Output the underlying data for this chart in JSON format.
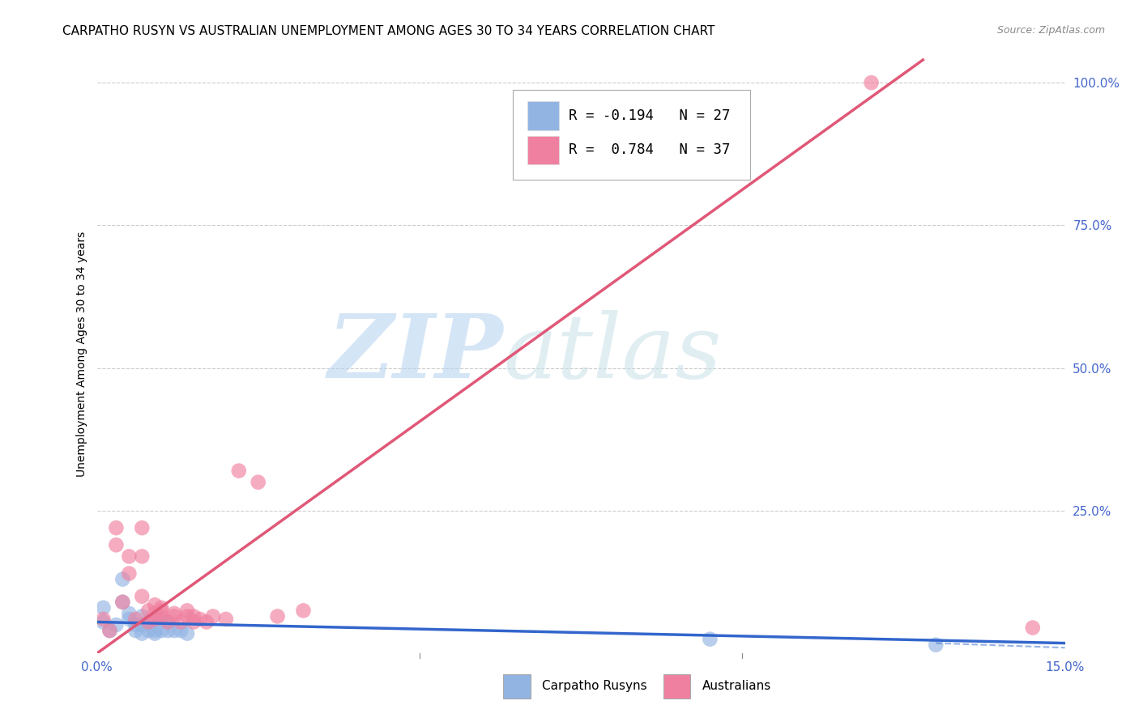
{
  "title": "CARPATHO RUSYN VS AUSTRALIAN UNEMPLOYMENT AMONG AGES 30 TO 34 YEARS CORRELATION CHART",
  "source": "Source: ZipAtlas.com",
  "ylabel": "Unemployment Among Ages 30 to 34 years",
  "xlim": [
    0.0,
    0.15
  ],
  "ylim": [
    0.0,
    1.05
  ],
  "xticks": [
    0.0,
    0.05,
    0.1,
    0.15
  ],
  "xticklabels": [
    "0.0%",
    "",
    "",
    "15.0%"
  ],
  "yticks_right": [
    0.0,
    0.25,
    0.5,
    0.75,
    1.0
  ],
  "yticklabels_right": [
    "",
    "25.0%",
    "50.0%",
    "75.0%",
    "100.0%"
  ],
  "legend_blue_label": "Carpatho Rusyns",
  "legend_pink_label": "Australians",
  "R_blue": -0.194,
  "N_blue": 27,
  "R_pink": 0.784,
  "N_pink": 37,
  "blue_color": "#92b4e3",
  "pink_color": "#f080a0",
  "blue_line_color": "#3366cc",
  "pink_line_color": "#e05878",
  "watermark_zip": "ZIP",
  "watermark_atlas": "atlas",
  "blue_dots_x": [
    0.001,
    0.001,
    0.002,
    0.003,
    0.004,
    0.004,
    0.005,
    0.005,
    0.006,
    0.006,
    0.007,
    0.007,
    0.007,
    0.008,
    0.008,
    0.009,
    0.009,
    0.009,
    0.01,
    0.01,
    0.011,
    0.011,
    0.012,
    0.013,
    0.014,
    0.095,
    0.13
  ],
  "blue_dots_y": [
    0.055,
    0.08,
    0.04,
    0.05,
    0.13,
    0.09,
    0.06,
    0.07,
    0.04,
    0.05,
    0.035,
    0.05,
    0.065,
    0.04,
    0.055,
    0.04,
    0.035,
    0.06,
    0.04,
    0.06,
    0.04,
    0.055,
    0.04,
    0.04,
    0.035,
    0.025,
    0.015
  ],
  "pink_dots_x": [
    0.001,
    0.002,
    0.003,
    0.003,
    0.004,
    0.005,
    0.005,
    0.006,
    0.007,
    0.007,
    0.007,
    0.008,
    0.008,
    0.009,
    0.009,
    0.009,
    0.01,
    0.01,
    0.01,
    0.011,
    0.012,
    0.012,
    0.013,
    0.014,
    0.014,
    0.015,
    0.015,
    0.016,
    0.017,
    0.018,
    0.02,
    0.022,
    0.025,
    0.028,
    0.032,
    0.12,
    0.145
  ],
  "pink_dots_y": [
    0.06,
    0.04,
    0.22,
    0.19,
    0.09,
    0.14,
    0.17,
    0.06,
    0.1,
    0.17,
    0.22,
    0.055,
    0.075,
    0.06,
    0.085,
    0.07,
    0.08,
    0.065,
    0.075,
    0.055,
    0.065,
    0.07,
    0.055,
    0.065,
    0.075,
    0.055,
    0.065,
    0.06,
    0.055,
    0.065,
    0.06,
    0.32,
    0.3,
    0.065,
    0.075,
    1.0,
    0.045
  ],
  "grid_color": "#cccccc",
  "background_color": "#ffffff",
  "title_fontsize": 11,
  "axis_label_fontsize": 10,
  "blue_trend_x": [
    0.0,
    0.15
  ],
  "blue_trend_y": [
    0.055,
    0.018
  ],
  "pink_trend_x": [
    0.0,
    0.128
  ],
  "pink_trend_y": [
    0.0,
    1.04
  ]
}
